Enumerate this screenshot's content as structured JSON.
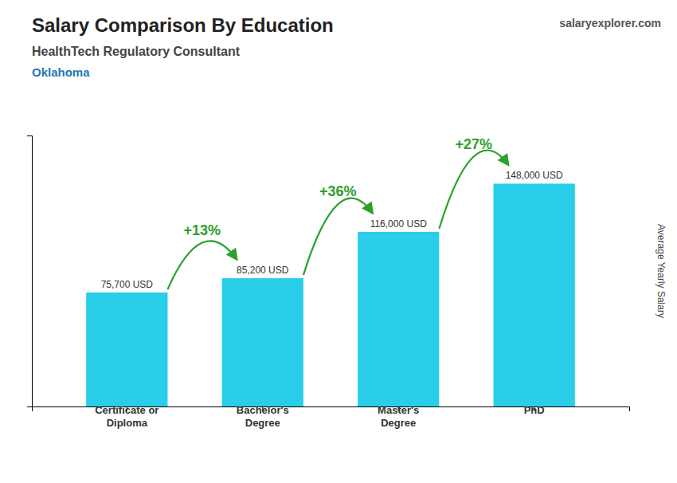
{
  "chart_data": {
    "type": "bar",
    "title": "Salary Comparison By Education",
    "subtitle": "HealthTech Regulatory Consultant",
    "location": "Oklahoma",
    "brand": "salaryexplorer.com",
    "ylabel": "Average Yearly Salary",
    "categories": [
      "Certificate or\nDiploma",
      "Bachelor's\nDegree",
      "Master's\nDegree",
      "PhD"
    ],
    "values": [
      75700,
      85200,
      116000,
      148000
    ],
    "value_labels": [
      "75,700 USD",
      "85,200 USD",
      "116,000 USD",
      "148,000 USD"
    ],
    "data_labels": true,
    "color": "#29CEE8",
    "ylim": [
      0,
      180000
    ],
    "tick_labels": "x",
    "grid": false,
    "annotations": [
      "+13%",
      "+36%",
      "+27%"
    ]
  }
}
